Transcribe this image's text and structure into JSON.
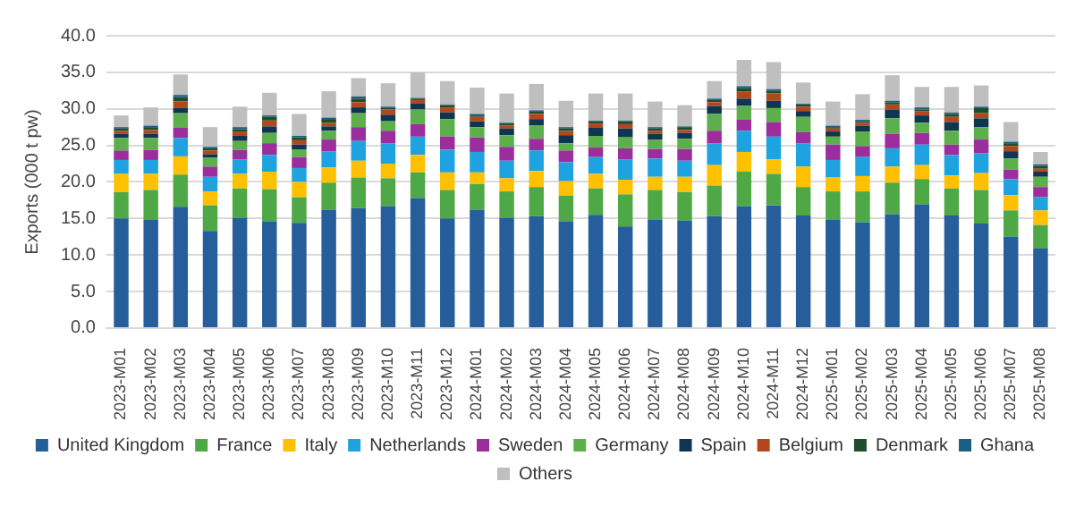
{
  "chart_data": {
    "type": "bar",
    "stacked": true,
    "ylabel": "Exports (000 t pw)",
    "grid": "y",
    "legend": "bottom",
    "categories": [
      "2023-M01",
      "2023-M02",
      "2023-M03",
      "2023-M04",
      "2023-M05",
      "2023-M06",
      "2023-M07",
      "2023-M08",
      "2023-M09",
      "2023-M10",
      "2023-M11",
      "2023-M12",
      "2024-M01",
      "2024-M02",
      "2024-M03",
      "2024-M04",
      "2024-M05",
      "2024-M06",
      "2024-M07",
      "2024-M08",
      "2024-M09",
      "2024-M10",
      "2024-M11",
      "2024-M12",
      "2025-M01",
      "2025-M02",
      "2025-M03",
      "2025-M04",
      "2025-M05",
      "2025-M06",
      "2025-M07",
      "2025-M08"
    ],
    "ylim": [
      0,
      40
    ],
    "yticks": [
      {
        "value": 0,
        "label": "0.0"
      },
      {
        "value": 5,
        "label": "5.0"
      },
      {
        "value": 10,
        "label": "10.0"
      },
      {
        "value": 15,
        "label": "15.0"
      },
      {
        "value": 20,
        "label": "20.0"
      },
      {
        "value": 25,
        "label": "25.0"
      },
      {
        "value": 30,
        "label": "30.0"
      },
      {
        "value": 35,
        "label": "35.0"
      },
      {
        "value": 40,
        "label": "40.0"
      }
    ],
    "series": [
      {
        "name": "United Kingdom",
        "color": "#255e9b",
        "values": [
          15.0,
          14.8,
          16.6,
          13.3,
          15.1,
          14.6,
          14.4,
          16.2,
          16.4,
          16.7,
          17.8,
          15.0,
          16.2,
          15.1,
          15.3,
          14.6,
          15.5,
          13.9,
          14.8,
          14.7,
          15.3,
          16.7,
          16.8,
          15.4,
          14.8,
          14.5,
          15.6,
          16.9,
          15.4,
          14.3,
          12.5,
          10.9
        ]
      },
      {
        "name": "France",
        "color": "#4ea845",
        "values": [
          3.6,
          4.1,
          4.4,
          3.5,
          4.0,
          4.4,
          3.5,
          3.7,
          4.2,
          3.8,
          3.5,
          3.9,
          3.5,
          3.6,
          4.0,
          3.5,
          3.6,
          4.4,
          4.1,
          3.9,
          4.2,
          4.7,
          4.3,
          3.9,
          3.9,
          4.2,
          4.3,
          3.5,
          3.7,
          4.6,
          3.6,
          3.2
        ]
      },
      {
        "name": "Italy",
        "color": "#ffc000",
        "values": [
          2.5,
          2.2,
          2.5,
          1.9,
          2.0,
          2.4,
          2.1,
          2.1,
          2.3,
          2.0,
          2.4,
          2.4,
          1.6,
          1.8,
          2.2,
          2.0,
          2.0,
          2.0,
          1.8,
          2.1,
          2.8,
          2.7,
          2.0,
          2.8,
          1.9,
          2.1,
          2.2,
          1.9,
          1.8,
          2.3,
          2.1,
          2.0
        ]
      },
      {
        "name": "Netherlands",
        "color": "#1fa3e0",
        "values": [
          1.9,
          1.9,
          2.5,
          2.0,
          2.0,
          2.3,
          1.9,
          2.2,
          2.7,
          2.8,
          2.5,
          3.1,
          2.8,
          2.4,
          2.8,
          2.6,
          2.3,
          2.8,
          2.5,
          2.2,
          3.0,
          2.9,
          3.1,
          3.2,
          2.4,
          2.6,
          2.5,
          2.8,
          2.8,
          2.7,
          2.2,
          1.8
        ]
      },
      {
        "name": "Sweden",
        "color": "#9c2d9c",
        "values": [
          1.3,
          1.4,
          1.4,
          1.4,
          1.3,
          1.6,
          1.5,
          1.6,
          1.9,
          1.7,
          1.7,
          1.8,
          2.0,
          1.9,
          1.6,
          1.6,
          1.3,
          1.5,
          1.3,
          1.6,
          1.7,
          1.5,
          2.0,
          1.5,
          2.1,
          1.5,
          2.0,
          1.6,
          1.4,
          1.9,
          1.3,
          1.4
        ]
      },
      {
        "name": "Germany",
        "color": "#5cb04c",
        "values": [
          1.7,
          1.6,
          2.0,
          1.2,
          1.2,
          1.4,
          1.0,
          1.2,
          1.9,
          1.3,
          2.0,
          2.4,
          1.4,
          1.6,
          1.8,
          1.0,
          1.6,
          1.5,
          1.3,
          1.4,
          2.3,
          1.9,
          1.9,
          2.1,
          1.1,
          2.0,
          2.1,
          1.4,
          1.9,
          1.7,
          1.5,
          1.4
        ]
      },
      {
        "name": "Spain",
        "color": "#0f3550",
        "values": [
          0.6,
          0.6,
          0.7,
          0.5,
          0.7,
          0.9,
          0.7,
          0.6,
          0.8,
          0.9,
          0.8,
          0.9,
          0.8,
          0.9,
          0.9,
          1.1,
          1.1,
          1.2,
          0.8,
          0.8,
          1.1,
          1.0,
          1.0,
          0.8,
          0.7,
          0.8,
          1.2,
          1.0,
          1.2,
          1.2,
          1.0,
          0.7
        ]
      },
      {
        "name": "Belgium",
        "color": "#b4461e",
        "values": [
          0.4,
          0.5,
          0.9,
          0.5,
          0.6,
          0.8,
          0.6,
          0.5,
          0.7,
          0.7,
          0.5,
          0.7,
          0.6,
          0.4,
          0.7,
          0.6,
          0.6,
          0.6,
          0.4,
          0.4,
          0.5,
          1.0,
          1.0,
          0.6,
          0.4,
          0.4,
          0.7,
          0.6,
          0.7,
          0.7,
          0.7,
          0.4
        ]
      },
      {
        "name": "Denmark",
        "color": "#1e4d2b",
        "values": [
          0.3,
          0.4,
          0.6,
          0.3,
          0.3,
          0.5,
          0.4,
          0.4,
          0.5,
          0.2,
          0.2,
          0.3,
          0.2,
          0.3,
          0.4,
          0.3,
          0.3,
          0.4,
          0.3,
          0.4,
          0.3,
          0.4,
          0.4,
          0.3,
          0.2,
          0.2,
          0.3,
          0.2,
          0.4,
          0.7,
          0.4,
          0.4
        ]
      },
      {
        "name": "Ghana",
        "color": "#1a5f86",
        "values": [
          0.2,
          0.2,
          0.3,
          0.2,
          0.3,
          0.2,
          0.2,
          0.3,
          0.3,
          0.2,
          0.1,
          0.1,
          0.2,
          0.1,
          0.1,
          0.2,
          0.1,
          0.1,
          0.2,
          0.1,
          0.2,
          0.3,
          0.2,
          0.1,
          0.2,
          0.2,
          0.2,
          0.3,
          0.2,
          0.2,
          0.2,
          0.2
        ]
      },
      {
        "name": "Others",
        "color": "#bfbfbf",
        "values": [
          1.6,
          2.5,
          2.8,
          2.7,
          2.8,
          3.1,
          3.0,
          3.6,
          2.5,
          3.2,
          3.5,
          3.2,
          3.6,
          4.0,
          3.6,
          3.6,
          3.7,
          3.7,
          3.5,
          2.9,
          2.4,
          3.6,
          3.7,
          2.9,
          3.3,
          3.5,
          3.5,
          2.8,
          3.5,
          2.9,
          2.7,
          1.7
        ]
      }
    ]
  }
}
